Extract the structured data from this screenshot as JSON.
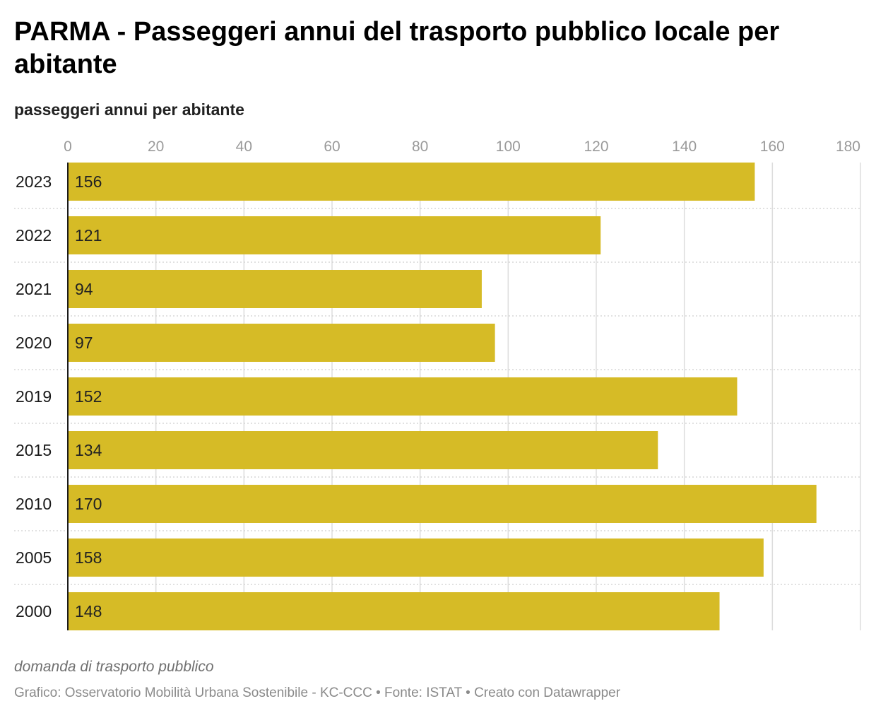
{
  "title": "PARMA - Passeggeri annui del trasporto pubblico locale per abitante",
  "subtitle": "passeggeri annui per abitante",
  "note": "domanda di trasporto pubblico",
  "footer": "Grafico: Osservatorio Mobilità Urbana Sostenibile - KC-CCC • Fonte: ISTAT • Creato con Datawrapper",
  "colors": {
    "bar": "#d6bb26",
    "grid": "#dddddd",
    "axis": "#1a1a1a",
    "tick": "#9a9a9a"
  },
  "chart_data": {
    "type": "bar",
    "orientation": "horizontal",
    "categories": [
      "2023",
      "2022",
      "2021",
      "2020",
      "2019",
      "2015",
      "2010",
      "2005",
      "2000"
    ],
    "values": [
      156,
      121,
      94,
      97,
      152,
      134,
      170,
      158,
      148
    ],
    "xlim": [
      0,
      180
    ],
    "xticks": [
      0,
      20,
      40,
      60,
      80,
      100,
      120,
      140,
      160,
      180
    ],
    "xtick_position": "top",
    "grid": true,
    "data_labels": "inside-left"
  }
}
